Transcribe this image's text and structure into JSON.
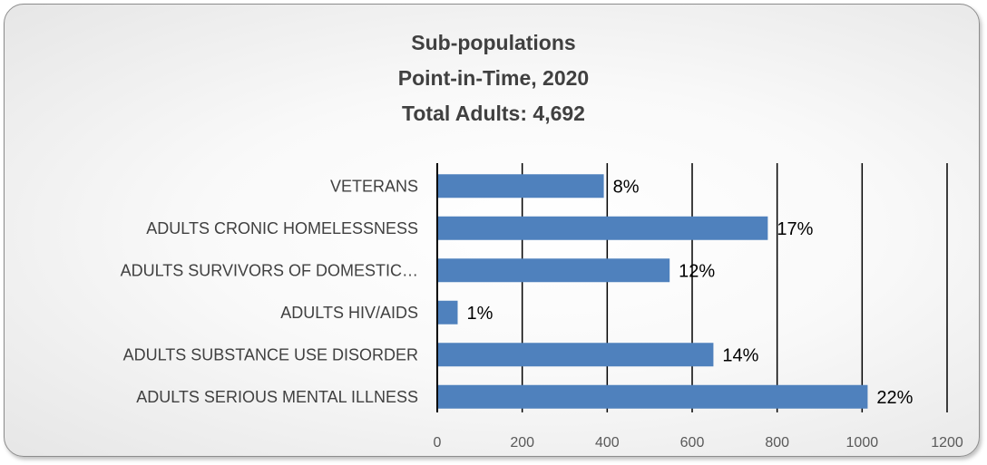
{
  "chart_data": {
    "type": "bar",
    "orientation": "horizontal",
    "title_lines": [
      "Sub-populations",
      "Point-in-Time, 2020",
      "Total Adults: 4,692"
    ],
    "categories": [
      "VETERANS",
      "ADULTS CRONIC HOMELESSNESS",
      "ADULTS SURVIVORS OF DOMESTIC…",
      "ADULTS HIV/AIDS",
      "ADULTS SUBSTANCE USE DISORDER",
      "ADULTS SERIOUS MENTAL ILLNESS"
    ],
    "values": [
      392,
      778,
      547,
      48,
      650,
      1013
    ],
    "data_labels": [
      "8%",
      "17%",
      "12%",
      "1%",
      "14%",
      "22%"
    ],
    "x_ticks": [
      "0",
      "200",
      "400",
      "600",
      "800",
      "1000",
      "1200"
    ],
    "xlim": [
      0,
      1200
    ],
    "grid": "vertical",
    "bar_color": "#4f81bd",
    "xlabel": "",
    "ylabel": ""
  }
}
